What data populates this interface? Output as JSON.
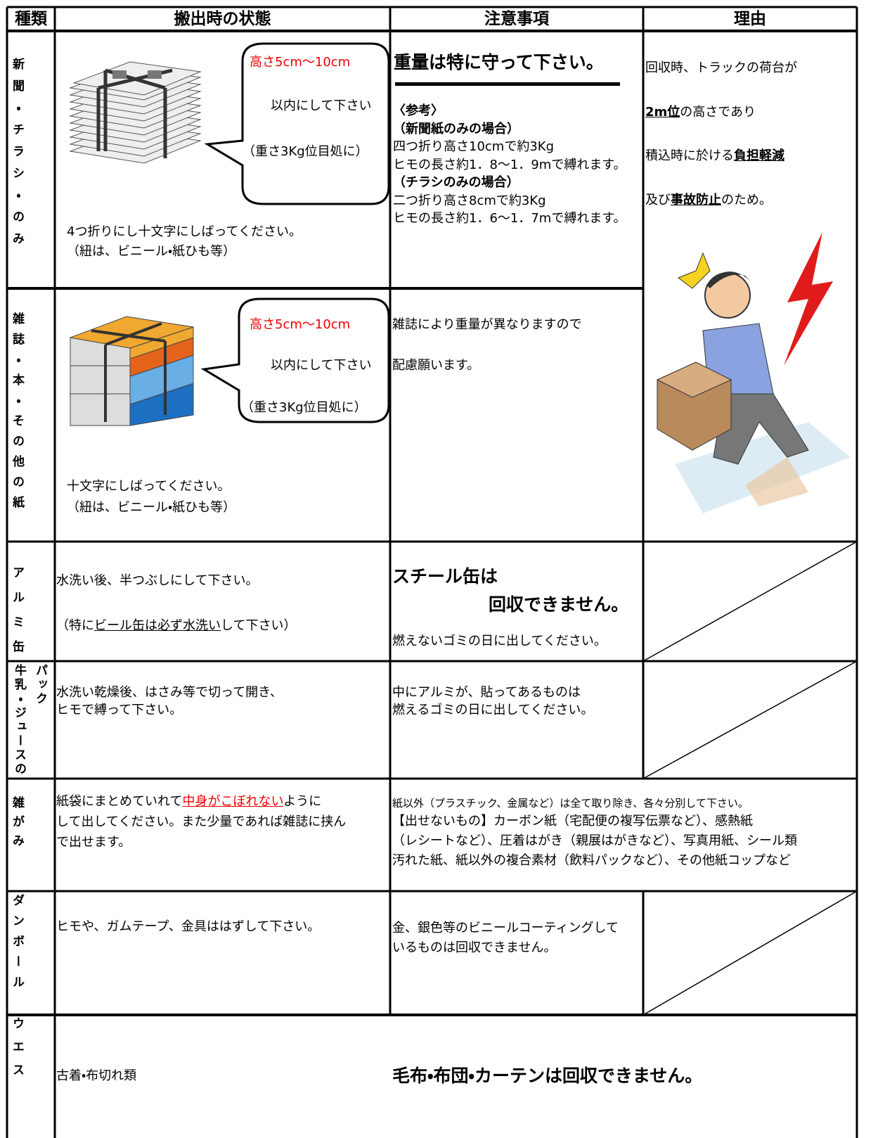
{
  "header": {
    "kind": "種類",
    "state": "搬出時の状態",
    "notes": "注意事項",
    "reason": "理由"
  },
  "reason": [
    [
      "回収時、トラックの荷台が"
    ],
    [
      "2m位",
      "の高さであり"
    ],
    [
      "積込時に於ける",
      "負担軽減"
    ],
    [
      "及び",
      "事故防止",
      "のため。"
    ]
  ],
  "rows": [
    {
      "kind": "新聞・チラシ・のみ",
      "bubble": [
        "高さ5cm〜10cm",
        "以内にして下さい",
        "（重さ3Kg位目処に）"
      ],
      "state": [
        "4つ折りにし十文字にしばってください。",
        "（紐は、ビニール・紙ひも等）"
      ],
      "notes": [
        "重量は特に守って下さい。",
        "〈参考〉",
        "（新聞紙のみの場合）",
        "四つ折り高さ10cmで約3Kg",
        "ヒモの長さ約1．8〜1．9mで縛れます。",
        "（チラシのみの場合）",
        "二つ折り高さ8cmで約3Kg",
        "ヒモの長さ約1．6〜1．7mで縛れます。"
      ]
    },
    {
      "kind": "雑誌・本・その他の紙",
      "bubble": [
        "高さ5cm〜10cm",
        "以内にして下さい",
        "（重さ3Kg位目処に）"
      ],
      "state": [
        "十文字にしばってください。",
        "（紐は、ビニール・紙ひも等）"
      ],
      "notes": [
        "雑誌により重量が異なりますので",
        "配慮願います。"
      ]
    },
    {
      "kind": "アルミ缶",
      "state": [
        [
          "水洗い後、半つぶしにして下さい。"
        ],
        [
          "（特に",
          "ビール缶は必ず水洗い",
          "して下さい）"
        ]
      ],
      "notes": [
        "スチール缶は",
        "回収できません。",
        "燃えないゴミの日に出してください。"
      ]
    },
    {
      "kind": "牛乳・ジュースのパック",
      "state": [
        "水洗い乾燥後、はさみ等で切って開き、",
        "ヒモで縛って下さい。"
      ],
      "notes": [
        "中にアルミが、貼ってあるものは",
        "燃えるゴミの日に出してください。"
      ]
    },
    {
      "kind": "雑がみ",
      "state": [
        [
          "紙袋にまとめていれて",
          "中身がこぼれない",
          "ように"
        ],
        [
          "して出してください。また少量であれば雑誌に挟ん"
        ],
        [
          "で出せます。"
        ]
      ],
      "notes": [
        "紙以外（プラスチック、金属など）は全て取り除き、各々分別して下さい。",
        "【出せないもの】カーボン紙（宅配便の複写伝票など）、感熱紙",
        "（レシートなど）、圧着はがき（親展はがきなど）、写真用紙、シール類",
        "汚れた紙、紙以外の複合素材（飲料パックなど）、その他紙コップなど"
      ]
    },
    {
      "kind": "ダンボール",
      "state": [
        "ヒモや、ガムテープ、金具ははずして下さい。"
      ],
      "notes": [
        "金、銀色等のビニールコーティングしているものは回収できません。"
      ]
    },
    {
      "kind": "ウエス",
      "state": [
        "古着・布切れ類"
      ],
      "notes": [
        "毛布・布団・カーテンは回収できません。"
      ]
    }
  ]
}
